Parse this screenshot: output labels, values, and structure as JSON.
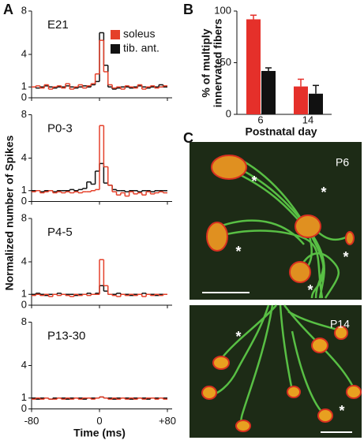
{
  "chart_data": [
    {
      "type": "histogram",
      "panel": "A",
      "ylabel": "Normalized number of  Spikes",
      "xlabel": "Time (ms)",
      "xlim": [
        -80,
        80
      ],
      "xticks": [
        {
          "value": -80,
          "label": "-80"
        },
        0,
        {
          "value": 80,
          "label": "+80"
        }
      ],
      "bins": [
        -80,
        -75,
        -70,
        -65,
        -60,
        -55,
        -50,
        -45,
        -40,
        -35,
        -30,
        -25,
        -20,
        -15,
        -10,
        -5,
        0,
        5,
        10,
        15,
        20,
        25,
        30,
        35,
        40,
        45,
        50,
        55,
        60,
        65,
        70,
        75,
        80
      ],
      "series": [
        {
          "name": "soleus",
          "color": "#e5402a"
        },
        {
          "name": "tib. ant.",
          "color": "#111111"
        }
      ],
      "subplots": [
        {
          "title": "E21",
          "ylim": [
            0,
            8
          ],
          "yticks": [
            0,
            1,
            4,
            8
          ],
          "values": [
            [
              1.0,
              1.1,
              0.9,
              1.2,
              0.8,
              1.0,
              1.1,
              0.9,
              1.3,
              0.8,
              1.0,
              1.2,
              0.9,
              1.1,
              1.3,
              2.2,
              5.3,
              2.4,
              1.2,
              0.9,
              1.0,
              0.8,
              1.1,
              1.0,
              0.9,
              1.2,
              0.8,
              1.0,
              1.1,
              0.9,
              1.0,
              1.1
            ],
            [
              1.0,
              0.9,
              1.0,
              1.1,
              1.0,
              0.9,
              1.0,
              1.0,
              1.1,
              1.0,
              0.9,
              1.0,
              1.1,
              1.0,
              1.2,
              1.5,
              6.0,
              3.0,
              1.0,
              0.8,
              0.9,
              1.0,
              1.0,
              0.9,
              1.0,
              1.1,
              1.0,
              0.9,
              1.0,
              1.0,
              1.2,
              1.0
            ]
          ]
        },
        {
          "title": "P0-3",
          "ylim": [
            0,
            8
          ],
          "yticks": [
            0,
            1,
            4,
            8
          ],
          "values": [
            [
              0.9,
              1.0,
              0.8,
              0.9,
              1.0,
              0.8,
              0.9,
              0.8,
              0.9,
              0.8,
              0.9,
              0.8,
              0.9,
              0.9,
              1.0,
              1.1,
              7.0,
              3.2,
              1.5,
              0.9,
              0.6,
              0.8,
              0.5,
              0.9,
              0.7,
              0.8,
              0.6,
              0.9,
              0.7,
              0.8,
              0.9,
              0.8
            ],
            [
              1.0,
              1.0,
              0.9,
              1.0,
              1.0,
              0.9,
              1.0,
              1.0,
              1.0,
              1.1,
              1.0,
              1.1,
              1.2,
              1.8,
              1.6,
              2.8,
              3.5,
              1.7,
              1.5,
              1.1,
              1.0,
              1.0,
              0.9,
              1.0,
              1.0,
              0.9,
              1.0,
              1.0,
              0.9,
              1.0,
              1.0,
              1.0
            ]
          ]
        },
        {
          "title": "P4-5",
          "ylim": [
            0,
            8
          ],
          "yticks": [
            0,
            1,
            4,
            8
          ],
          "values": [
            [
              0.9,
              1.0,
              0.9,
              1.0,
              0.8,
              1.0,
              0.9,
              1.0,
              0.9,
              0.8,
              1.0,
              0.9,
              1.0,
              0.9,
              1.0,
              1.0,
              4.2,
              1.8,
              1.0,
              0.9,
              0.8,
              1.0,
              0.9,
              1.0,
              0.9,
              1.0,
              0.8,
              1.0,
              0.9,
              1.0,
              0.9,
              1.0
            ],
            [
              1.0,
              1.1,
              1.0,
              0.9,
              1.0,
              1.0,
              1.1,
              1.0,
              1.0,
              1.0,
              0.9,
              1.0,
              1.0,
              1.1,
              1.0,
              1.1,
              1.8,
              1.3,
              1.0,
              1.0,
              1.1,
              1.0,
              1.0,
              0.9,
              1.0,
              1.0,
              1.1,
              1.0,
              1.0,
              0.9,
              1.0,
              1.0
            ]
          ]
        },
        {
          "title": "P13-30",
          "ylim": [
            0,
            8
          ],
          "yticks": [
            0,
            1,
            4,
            8
          ],
          "values": [
            [
              0.9,
              1.0,
              0.9,
              1.0,
              0.9,
              0.9,
              1.0,
              0.9,
              1.0,
              0.9,
              1.0,
              0.9,
              1.0,
              1.0,
              0.9,
              1.0,
              1.1,
              1.0,
              0.9,
              1.0,
              0.9,
              1.0,
              0.9,
              1.0,
              0.9,
              1.0,
              0.9,
              1.0,
              1.0,
              0.9,
              1.0,
              0.9
            ],
            [
              1.0,
              0.9,
              1.0,
              1.0,
              0.9,
              1.0,
              1.0,
              1.0,
              0.9,
              1.0,
              1.0,
              1.0,
              0.9,
              1.0,
              1.0,
              1.0,
              1.1,
              1.0,
              1.0,
              0.9,
              1.0,
              1.0,
              1.0,
              0.9,
              1.0,
              1.0,
              1.0,
              0.9,
              1.0,
              1.0,
              1.0,
              1.0
            ]
          ]
        }
      ]
    },
    {
      "type": "bar",
      "panel": "B",
      "ylabel": [
        "% of multiply",
        "innervated fibers"
      ],
      "xlabel": "Postnatal day",
      "categories": [
        "6",
        "14"
      ],
      "ylim": [
        0,
        100
      ],
      "yticks": [
        0,
        50,
        100
      ],
      "series": [
        {
          "color": "#e5302a",
          "values": [
            92,
            27
          ],
          "errors": [
            4,
            7
          ]
        },
        {
          "color": "#111111",
          "values": [
            42,
            20
          ],
          "errors": [
            3,
            8
          ]
        }
      ]
    }
  ],
  "panel_c": {
    "panel": "C",
    "images": [
      {
        "label": "P6",
        "markers": [
          "*",
          "*",
          "*",
          "*",
          "*"
        ]
      },
      {
        "label": "P14",
        "markers": [
          "*",
          "*"
        ]
      }
    ]
  }
}
